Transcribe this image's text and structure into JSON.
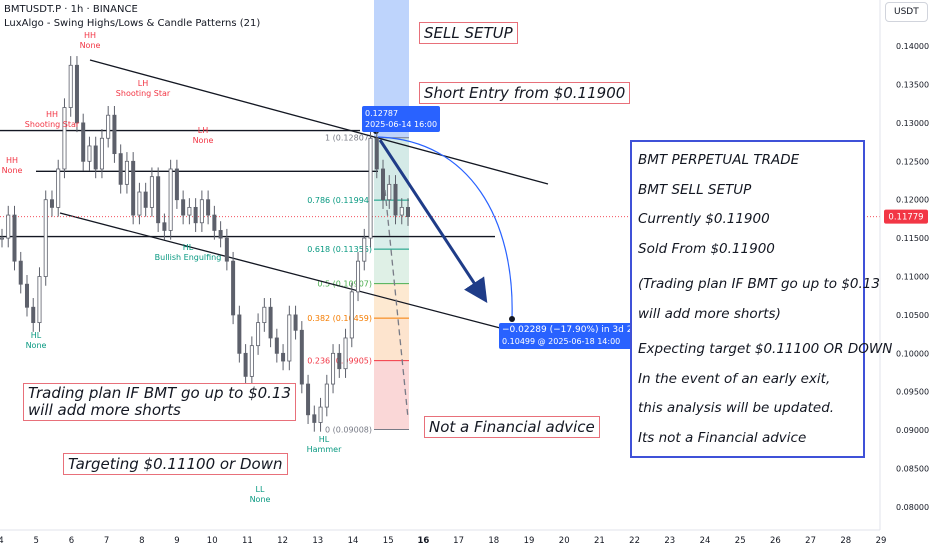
{
  "header": {
    "symbol": "BMTUSDT.P · 1h · BINANCE",
    "indicator": "LuxAlgo - Swing Highs/Lows & Candle Patterns (21)",
    "currency": "USDT"
  },
  "chart_data": {
    "type": "candlestick",
    "y_axis": {
      "ticks": [
        "0.14000",
        "0.13500",
        "0.13000",
        "0.12500",
        "0.12000",
        "0.11500",
        "0.11000",
        "0.10500",
        "0.10000",
        "0.09500",
        "0.09000",
        "0.08500",
        "0.08000"
      ],
      "range": [
        0.077,
        0.146
      ],
      "last_price": "0.11779",
      "last_price_value": 0.11779
    },
    "x_axis": {
      "ticks": [
        "4",
        "5",
        "6",
        "7",
        "8",
        "9",
        "10",
        "11",
        "12",
        "13",
        "14",
        "15",
        "16",
        "17",
        "18",
        "19",
        "20",
        "21",
        "22",
        "23",
        "24",
        "25",
        "26",
        "27",
        "28",
        "29"
      ],
      "bold_ticks": [
        "16"
      ]
    },
    "candles_close_path": [
      0.115,
      0.118,
      0.112,
      0.109,
      0.106,
      0.104,
      0.11,
      0.12,
      0.119,
      0.124,
      0.132,
      0.1375,
      0.13,
      0.125,
      0.127,
      0.124,
      0.128,
      0.131,
      0.126,
      0.122,
      0.125,
      0.118,
      0.121,
      0.119,
      0.123,
      0.117,
      0.116,
      0.124,
      0.12,
      0.118,
      0.119,
      0.117,
      0.12,
      0.118,
      0.116,
      0.115,
      0.112,
      0.105,
      0.1,
      0.097,
      0.101,
      0.104,
      0.106,
      0.102,
      0.1,
      0.099,
      0.105,
      0.103,
      0.096,
      0.092,
      0.091,
      0.093,
      0.096,
      0.1,
      0.098,
      0.102,
      0.108,
      0.112,
      0.115,
      0.128,
      0.124,
      0.12,
      0.122,
      0.118,
      0.119,
      0.1178
    ],
    "swing_labels": [
      {
        "text": "HH",
        "sub": "None",
        "type": "high"
      },
      {
        "text": "HH",
        "sub": "Shooting Star",
        "type": "high"
      },
      {
        "text": "HH",
        "sub": "None",
        "type": "high"
      },
      {
        "text": "LH",
        "sub": "Shooting Star",
        "type": "high"
      },
      {
        "text": "LH",
        "sub": "None",
        "type": "high"
      },
      {
        "text": "HL",
        "sub": "Bullish Engulfing",
        "type": "low"
      },
      {
        "text": "HL",
        "sub": "None",
        "type": "low"
      },
      {
        "text": "HL",
        "sub": "Hammer",
        "type": "low"
      },
      {
        "text": "LL",
        "sub": "None",
        "type": "low"
      }
    ],
    "fibonacci": [
      {
        "level": "1",
        "price": "0.12807",
        "value": 0.12807
      },
      {
        "level": "0.786",
        "price": "0.11994",
        "value": 0.11994
      },
      {
        "level": "0.618",
        "price": "0.11356",
        "value": 0.11356
      },
      {
        "level": "0.5",
        "price": "0.10907",
        "value": 0.10907
      },
      {
        "level": "0.382",
        "price": "0.10459",
        "value": 0.10459
      },
      {
        "level": "0.236",
        "price": "0.09905",
        "value": 0.09905
      },
      {
        "level": "0",
        "price": "0.09008",
        "value": 0.09008
      }
    ],
    "horizontal_levels": [
      0.129,
      0.1237,
      0.1152
    ],
    "tooltip_top": {
      "price": "0.12787",
      "date": "2025-06-14 16:00"
    },
    "tooltip_bottom": {
      "change": "−0.02289 (−17.90%) in 3d 22h",
      "date": "0.10499 @ 2025-06-18  14:00"
    }
  },
  "annotations": {
    "sell_setup": "SELL SETUP",
    "short_entry": "Short Entry from $0.11900",
    "trading_plan": [
      "Trading plan IF BMT go up to $0.13",
      "will add more shorts"
    ],
    "targeting": "Targeting $0.11100 or Down",
    "not_advice": "Not a Financial advice"
  },
  "panel": {
    "lines": [
      "BMT PERPETUAL TRADE",
      "BMT SELL SETUP",
      "Currently $0.11900",
      "Sold From $0.11900",
      "(Trading plan IF BMT go up to $0.13",
      "will add more shorts)",
      "Expecting target $0.11100 OR DOWN",
      "In the event of an early exit,",
      "this analysis will be updated.",
      "Its not a Financial advice"
    ]
  },
  "colors": {
    "up": "#089981",
    "down": "#f23645",
    "candle": "#5d606b",
    "highlight": "#b3cdfb",
    "panel_border": "#3f51d8",
    "box_border": "#e8707a",
    "arrow": "#1f3c88"
  }
}
